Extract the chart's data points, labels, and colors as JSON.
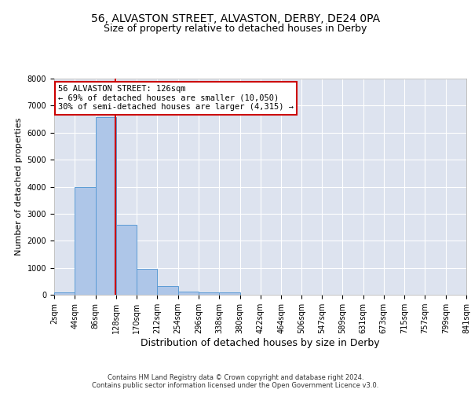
{
  "title1": "56, ALVASTON STREET, ALVASTON, DERBY, DE24 0PA",
  "title2": "Size of property relative to detached houses in Derby",
  "xlabel": "Distribution of detached houses by size in Derby",
  "ylabel": "Number of detached properties",
  "bar_values": [
    75,
    3980,
    6560,
    2600,
    950,
    310,
    125,
    100,
    75,
    0,
    0,
    0,
    0,
    0,
    0,
    0,
    0,
    0,
    0,
    0
  ],
  "bin_edges": [
    2,
    44,
    86,
    128,
    170,
    212,
    254,
    296,
    338,
    380,
    422,
    464,
    506,
    547,
    589,
    631,
    673,
    715,
    757,
    799,
    841
  ],
  "tick_labels": [
    "2sqm",
    "44sqm",
    "86sqm",
    "128sqm",
    "170sqm",
    "212sqm",
    "254sqm",
    "296sqm",
    "338sqm",
    "380sqm",
    "422sqm",
    "464sqm",
    "506sqm",
    "547sqm",
    "589sqm",
    "631sqm",
    "673sqm",
    "715sqm",
    "757sqm",
    "799sqm",
    "841sqm"
  ],
  "bar_color": "#aec6e8",
  "bar_edge_color": "#5b9bd5",
  "property_line_x": 126,
  "property_line_color": "#cc0000",
  "annotation_line1": "56 ALVASTON STREET: 126sqm",
  "annotation_line2": "← 69% of detached houses are smaller (10,050)",
  "annotation_line3": "30% of semi-detached houses are larger (4,315) →",
  "annotation_box_color": "#cc0000",
  "ylim": [
    0,
    8000
  ],
  "yticks": [
    0,
    1000,
    2000,
    3000,
    4000,
    5000,
    6000,
    7000,
    8000
  ],
  "bg_color": "#dde3ef",
  "grid_color": "#ffffff",
  "footer": "Contains HM Land Registry data © Crown copyright and database right 2024.\nContains public sector information licensed under the Open Government Licence v3.0.",
  "title1_fontsize": 10,
  "title2_fontsize": 9,
  "xlabel_fontsize": 9,
  "ylabel_fontsize": 8,
  "tick_fontsize": 7,
  "annotation_fontsize": 7.5,
  "footer_fontsize": 6
}
